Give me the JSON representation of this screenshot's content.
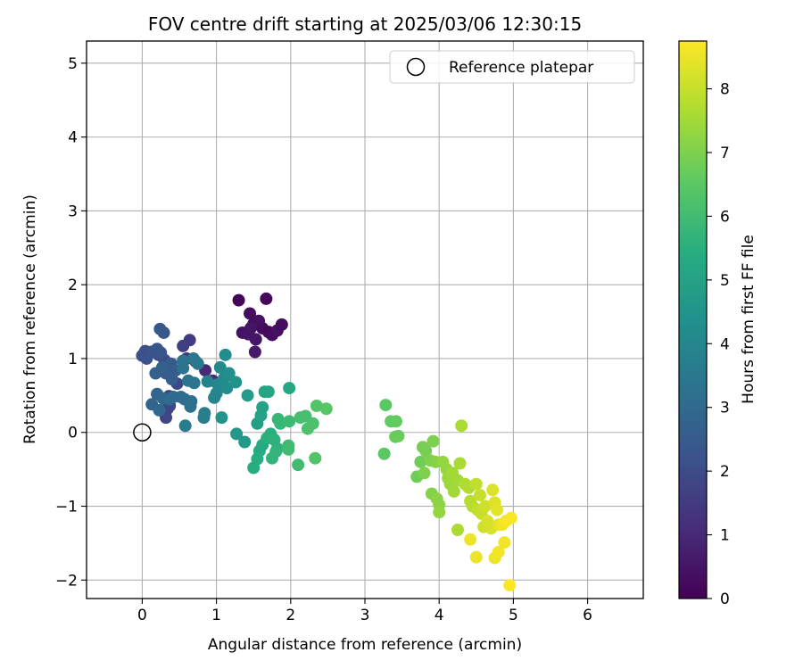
{
  "chart_data": {
    "type": "scatter",
    "title": "FOV centre drift starting at 2025/03/06 12:30:15",
    "xlabel": "Angular distance from reference (arcmin)",
    "ylabel": "Rotation from reference (arcmin)",
    "xlim": [
      -0.75,
      6.75
    ],
    "ylim": [
      -2.25,
      5.3
    ],
    "xticks": [
      "0",
      "1",
      "2",
      "3",
      "4",
      "5",
      "6"
    ],
    "yticks": [
      "−2",
      "−1",
      "0",
      "1",
      "2",
      "3",
      "4",
      "5"
    ],
    "grid": true,
    "legend": {
      "label": "Reference platepar",
      "placement": "top-right",
      "marker": "open-circle"
    },
    "reference_point": {
      "x": 0,
      "y": 0
    },
    "colorbar": {
      "label": "Hours from first FF file",
      "colormap": "viridis",
      "range": [
        0,
        8.75
      ],
      "ticks": [
        "0",
        "1",
        "2",
        "3",
        "4",
        "5",
        "6",
        "7",
        "8"
      ]
    },
    "points": [
      {
        "x": 1.3,
        "y": 1.79,
        "t": 0.1
      },
      {
        "x": 1.67,
        "y": 1.81,
        "t": 0.2
      },
      {
        "x": 1.45,
        "y": 1.61,
        "t": 0.3
      },
      {
        "x": 1.5,
        "y": 1.47,
        "t": 0.3
      },
      {
        "x": 1.57,
        "y": 1.51,
        "t": 0.4
      },
      {
        "x": 1.35,
        "y": 1.35,
        "t": 0.4
      },
      {
        "x": 1.43,
        "y": 1.33,
        "t": 0.5
      },
      {
        "x": 1.53,
        "y": 1.26,
        "t": 0.5
      },
      {
        "x": 1.62,
        "y": 1.41,
        "t": 0.3
      },
      {
        "x": 1.7,
        "y": 1.36,
        "t": 0.2
      },
      {
        "x": 1.75,
        "y": 1.32,
        "t": 0.3
      },
      {
        "x": 1.82,
        "y": 1.38,
        "t": 0.4
      },
      {
        "x": 1.88,
        "y": 1.46,
        "t": 0.3
      },
      {
        "x": 1.52,
        "y": 1.09,
        "t": 0.6
      },
      {
        "x": 1.46,
        "y": 1.41,
        "t": 0.5
      },
      {
        "x": 0.85,
        "y": 0.84,
        "t": 1.0
      },
      {
        "x": 0.95,
        "y": 0.7,
        "t": 1.1
      },
      {
        "x": 0.6,
        "y": 1.0,
        "t": 1.3
      },
      {
        "x": 0.72,
        "y": 0.96,
        "t": 1.4
      },
      {
        "x": 0.64,
        "y": 1.25,
        "t": 1.5
      },
      {
        "x": 0.55,
        "y": 1.17,
        "t": 1.6
      },
      {
        "x": 0.34,
        "y": 0.32,
        "t": 1.6
      },
      {
        "x": 0.36,
        "y": 0.49,
        "t": 1.7
      },
      {
        "x": 0.32,
        "y": 0.2,
        "t": 1.8
      },
      {
        "x": 0.37,
        "y": 0.36,
        "t": 1.8
      },
      {
        "x": 0.47,
        "y": 0.66,
        "t": 1.9
      },
      {
        "x": 0.3,
        "y": 0.98,
        "t": 2.0
      },
      {
        "x": 0.22,
        "y": 1.05,
        "t": 2.0
      },
      {
        "x": 0.0,
        "y": 1.04,
        "t": 2.1
      },
      {
        "x": 0.04,
        "y": 1.1,
        "t": 2.1
      },
      {
        "x": 0.06,
        "y": 1.0,
        "t": 2.2
      },
      {
        "x": 0.12,
        "y": 1.09,
        "t": 2.2
      },
      {
        "x": 0.2,
        "y": 1.13,
        "t": 2.3
      },
      {
        "x": 0.25,
        "y": 1.08,
        "t": 2.3
      },
      {
        "x": 0.24,
        "y": 1.4,
        "t": 2.4
      },
      {
        "x": 0.29,
        "y": 1.35,
        "t": 2.4
      },
      {
        "x": 0.32,
        "y": 0.8,
        "t": 2.5
      },
      {
        "x": 0.39,
        "y": 0.93,
        "t": 2.5
      },
      {
        "x": 0.45,
        "y": 0.84,
        "t": 2.6
      },
      {
        "x": 0.4,
        "y": 0.72,
        "t": 2.6
      },
      {
        "x": 0.27,
        "y": 0.88,
        "t": 2.7
      },
      {
        "x": 0.18,
        "y": 0.8,
        "t": 2.7
      },
      {
        "x": 0.13,
        "y": 0.38,
        "t": 2.8
      },
      {
        "x": 0.2,
        "y": 0.52,
        "t": 2.8
      },
      {
        "x": 0.23,
        "y": 0.3,
        "t": 2.9
      },
      {
        "x": 0.28,
        "y": 0.46,
        "t": 2.9
      },
      {
        "x": 0.36,
        "y": 0.45,
        "t": 3.0
      },
      {
        "x": 0.42,
        "y": 0.48,
        "t": 3.0
      },
      {
        "x": 0.52,
        "y": 0.48,
        "t": 3.1
      },
      {
        "x": 0.57,
        "y": 0.45,
        "t": 3.1
      },
      {
        "x": 0.66,
        "y": 0.42,
        "t": 3.2
      },
      {
        "x": 0.65,
        "y": 0.35,
        "t": 3.2
      },
      {
        "x": 0.55,
        "y": 0.87,
        "t": 3.3
      },
      {
        "x": 0.62,
        "y": 0.7,
        "t": 3.3
      },
      {
        "x": 0.7,
        "y": 0.67,
        "t": 3.4
      },
      {
        "x": 0.55,
        "y": 0.97,
        "t": 3.4
      },
      {
        "x": 0.75,
        "y": 0.93,
        "t": 3.5
      },
      {
        "x": 0.69,
        "y": 1.0,
        "t": 3.5
      },
      {
        "x": 0.58,
        "y": 0.09,
        "t": 3.6
      },
      {
        "x": 0.83,
        "y": 0.2,
        "t": 3.6
      },
      {
        "x": 0.84,
        "y": 0.26,
        "t": 3.7
      },
      {
        "x": 0.88,
        "y": 0.69,
        "t": 3.8
      },
      {
        "x": 0.97,
        "y": 0.47,
        "t": 3.9
      },
      {
        "x": 1.0,
        "y": 0.53,
        "t": 4.0
      },
      {
        "x": 1.02,
        "y": 0.65,
        "t": 4.0
      },
      {
        "x": 1.05,
        "y": 0.88,
        "t": 4.1
      },
      {
        "x": 1.1,
        "y": 0.73,
        "t": 4.1
      },
      {
        "x": 1.14,
        "y": 0.6,
        "t": 4.2
      },
      {
        "x": 1.12,
        "y": 1.05,
        "t": 4.2
      },
      {
        "x": 1.17,
        "y": 0.8,
        "t": 4.3
      },
      {
        "x": 1.26,
        "y": 0.68,
        "t": 4.4
      },
      {
        "x": 1.07,
        "y": 0.2,
        "t": 4.5
      },
      {
        "x": 1.27,
        "y": -0.02,
        "t": 4.6
      },
      {
        "x": 1.38,
        "y": -0.13,
        "t": 4.7
      },
      {
        "x": 1.42,
        "y": 0.5,
        "t": 4.8
      },
      {
        "x": 1.55,
        "y": 0.12,
        "t": 4.9
      },
      {
        "x": 1.6,
        "y": 0.23,
        "t": 5.0
      },
      {
        "x": 1.62,
        "y": 0.34,
        "t": 5.0
      },
      {
        "x": 1.65,
        "y": 0.55,
        "t": 5.1
      },
      {
        "x": 1.7,
        "y": 0.55,
        "t": 5.1
      },
      {
        "x": 1.98,
        "y": 0.6,
        "t": 5.2
      },
      {
        "x": 1.62,
        "y": -0.17,
        "t": 5.3
      },
      {
        "x": 1.58,
        "y": -0.25,
        "t": 5.3
      },
      {
        "x": 1.55,
        "y": -0.36,
        "t": 5.4
      },
      {
        "x": 1.5,
        "y": -0.48,
        "t": 5.4
      },
      {
        "x": 1.68,
        "y": -0.08,
        "t": 5.5
      },
      {
        "x": 1.73,
        "y": -0.02,
        "t": 5.5
      },
      {
        "x": 1.78,
        "y": -0.1,
        "t": 5.6
      },
      {
        "x": 1.82,
        "y": -0.22,
        "t": 5.6
      },
      {
        "x": 1.75,
        "y": -0.35,
        "t": 5.7
      },
      {
        "x": 1.8,
        "y": -0.26,
        "t": 5.7
      },
      {
        "x": 1.86,
        "y": 0.12,
        "t": 5.8
      },
      {
        "x": 1.83,
        "y": 0.18,
        "t": 5.8
      },
      {
        "x": 1.98,
        "y": 0.15,
        "t": 5.9
      },
      {
        "x": 1.97,
        "y": -0.18,
        "t": 5.9
      },
      {
        "x": 1.97,
        "y": -0.23,
        "t": 6.0
      },
      {
        "x": 2.1,
        "y": -0.44,
        "t": 6.0
      },
      {
        "x": 2.13,
        "y": 0.2,
        "t": 6.1
      },
      {
        "x": 2.2,
        "y": 0.22,
        "t": 6.1
      },
      {
        "x": 2.23,
        "y": 0.05,
        "t": 6.2
      },
      {
        "x": 2.3,
        "y": 0.12,
        "t": 6.2
      },
      {
        "x": 2.33,
        "y": -0.35,
        "t": 6.3
      },
      {
        "x": 2.35,
        "y": 0.36,
        "t": 6.3
      },
      {
        "x": 2.48,
        "y": 0.32,
        "t": 6.4
      },
      {
        "x": 3.26,
        "y": -0.29,
        "t": 6.5
      },
      {
        "x": 3.28,
        "y": 0.37,
        "t": 6.5
      },
      {
        "x": 3.35,
        "y": 0.15,
        "t": 6.6
      },
      {
        "x": 3.42,
        "y": 0.15,
        "t": 6.6
      },
      {
        "x": 3.41,
        "y": -0.06,
        "t": 6.7
      },
      {
        "x": 3.45,
        "y": -0.05,
        "t": 6.7
      },
      {
        "x": 3.7,
        "y": -0.6,
        "t": 6.8
      },
      {
        "x": 3.75,
        "y": -0.4,
        "t": 6.8
      },
      {
        "x": 3.78,
        "y": -0.2,
        "t": 6.9
      },
      {
        "x": 3.82,
        "y": -0.25,
        "t": 6.9
      },
      {
        "x": 3.8,
        "y": -0.55,
        "t": 7.0
      },
      {
        "x": 3.88,
        "y": -0.38,
        "t": 7.0
      },
      {
        "x": 3.92,
        "y": -0.12,
        "t": 7.0
      },
      {
        "x": 3.95,
        "y": -0.4,
        "t": 7.1
      },
      {
        "x": 3.9,
        "y": -0.83,
        "t": 7.1
      },
      {
        "x": 3.97,
        "y": -0.9,
        "t": 7.2
      },
      {
        "x": 4.0,
        "y": -0.98,
        "t": 7.2
      },
      {
        "x": 4.0,
        "y": -1.08,
        "t": 7.3
      },
      {
        "x": 4.05,
        "y": -0.4,
        "t": 7.3
      },
      {
        "x": 4.1,
        "y": -0.5,
        "t": 7.3
      },
      {
        "x": 4.12,
        "y": -0.62,
        "t": 7.4
      },
      {
        "x": 4.15,
        "y": -0.7,
        "t": 7.4
      },
      {
        "x": 4.18,
        "y": -0.55,
        "t": 7.5
      },
      {
        "x": 4.2,
        "y": -0.8,
        "t": 7.5
      },
      {
        "x": 4.25,
        "y": -0.65,
        "t": 7.5
      },
      {
        "x": 4.28,
        "y": -0.42,
        "t": 7.6
      },
      {
        "x": 4.25,
        "y": -1.32,
        "t": 7.6
      },
      {
        "x": 4.3,
        "y": 0.09,
        "t": 7.6
      },
      {
        "x": 4.35,
        "y": -0.7,
        "t": 7.7
      },
      {
        "x": 4.4,
        "y": -0.75,
        "t": 7.7
      },
      {
        "x": 4.42,
        "y": -0.93,
        "t": 7.8
      },
      {
        "x": 4.45,
        "y": -1.0,
        "t": 7.8
      },
      {
        "x": 4.5,
        "y": -0.7,
        "t": 7.9
      },
      {
        "x": 4.52,
        "y": -1.05,
        "t": 7.9
      },
      {
        "x": 4.55,
        "y": -0.85,
        "t": 8.0
      },
      {
        "x": 4.57,
        "y": -1.1,
        "t": 8.0
      },
      {
        "x": 4.6,
        "y": -1.28,
        "t": 8.1
      },
      {
        "x": 4.62,
        "y": -1.0,
        "t": 8.1
      },
      {
        "x": 4.65,
        "y": -1.2,
        "t": 8.2
      },
      {
        "x": 4.7,
        "y": -1.3,
        "t": 8.2
      },
      {
        "x": 4.72,
        "y": -0.78,
        "t": 8.3
      },
      {
        "x": 4.75,
        "y": -0.95,
        "t": 8.3
      },
      {
        "x": 4.78,
        "y": -1.05,
        "t": 8.4
      },
      {
        "x": 4.8,
        "y": -1.25,
        "t": 8.4
      },
      {
        "x": 4.42,
        "y": -1.45,
        "t": 8.5
      },
      {
        "x": 4.5,
        "y": -1.69,
        "t": 8.5
      },
      {
        "x": 4.75,
        "y": -1.7,
        "t": 8.5
      },
      {
        "x": 4.8,
        "y": -1.62,
        "t": 8.6
      },
      {
        "x": 4.85,
        "y": -1.25,
        "t": 8.6
      },
      {
        "x": 4.88,
        "y": -1.49,
        "t": 8.6
      },
      {
        "x": 4.9,
        "y": -1.2,
        "t": 8.7
      },
      {
        "x": 4.97,
        "y": -1.16,
        "t": 8.7
      },
      {
        "x": 4.95,
        "y": -2.07,
        "t": 8.75
      }
    ]
  }
}
